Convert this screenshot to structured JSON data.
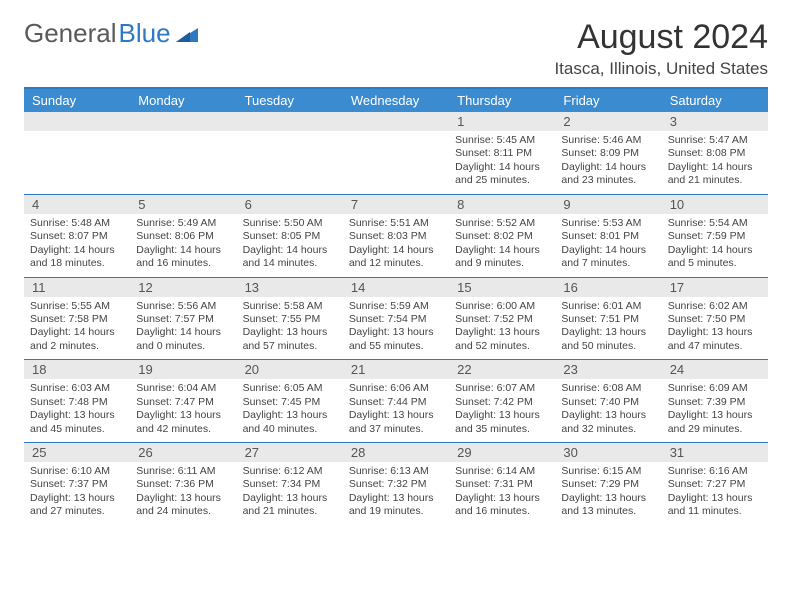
{
  "logo": {
    "text1": "General",
    "text2": "Blue"
  },
  "title": "August 2024",
  "subtitle": "Itasca, Illinois, United States",
  "colors": {
    "header_bg": "#3a8bcf",
    "rule": "#2e7ac2",
    "daynum_bg": "#e9e9e9",
    "text": "#333333",
    "brand_gray": "#5a5a5a",
    "brand_blue": "#2e7ac2",
    "background": "#ffffff"
  },
  "day_names": [
    "Sunday",
    "Monday",
    "Tuesday",
    "Wednesday",
    "Thursday",
    "Friday",
    "Saturday"
  ],
  "weeks": [
    [
      {
        "num": "",
        "sunrise": "",
        "sunset": "",
        "daylight": ""
      },
      {
        "num": "",
        "sunrise": "",
        "sunset": "",
        "daylight": ""
      },
      {
        "num": "",
        "sunrise": "",
        "sunset": "",
        "daylight": ""
      },
      {
        "num": "",
        "sunrise": "",
        "sunset": "",
        "daylight": ""
      },
      {
        "num": "1",
        "sunrise": "Sunrise: 5:45 AM",
        "sunset": "Sunset: 8:11 PM",
        "daylight": "Daylight: 14 hours and 25 minutes."
      },
      {
        "num": "2",
        "sunrise": "Sunrise: 5:46 AM",
        "sunset": "Sunset: 8:09 PM",
        "daylight": "Daylight: 14 hours and 23 minutes."
      },
      {
        "num": "3",
        "sunrise": "Sunrise: 5:47 AM",
        "sunset": "Sunset: 8:08 PM",
        "daylight": "Daylight: 14 hours and 21 minutes."
      }
    ],
    [
      {
        "num": "4",
        "sunrise": "Sunrise: 5:48 AM",
        "sunset": "Sunset: 8:07 PM",
        "daylight": "Daylight: 14 hours and 18 minutes."
      },
      {
        "num": "5",
        "sunrise": "Sunrise: 5:49 AM",
        "sunset": "Sunset: 8:06 PM",
        "daylight": "Daylight: 14 hours and 16 minutes."
      },
      {
        "num": "6",
        "sunrise": "Sunrise: 5:50 AM",
        "sunset": "Sunset: 8:05 PM",
        "daylight": "Daylight: 14 hours and 14 minutes."
      },
      {
        "num": "7",
        "sunrise": "Sunrise: 5:51 AM",
        "sunset": "Sunset: 8:03 PM",
        "daylight": "Daylight: 14 hours and 12 minutes."
      },
      {
        "num": "8",
        "sunrise": "Sunrise: 5:52 AM",
        "sunset": "Sunset: 8:02 PM",
        "daylight": "Daylight: 14 hours and 9 minutes."
      },
      {
        "num": "9",
        "sunrise": "Sunrise: 5:53 AM",
        "sunset": "Sunset: 8:01 PM",
        "daylight": "Daylight: 14 hours and 7 minutes."
      },
      {
        "num": "10",
        "sunrise": "Sunrise: 5:54 AM",
        "sunset": "Sunset: 7:59 PM",
        "daylight": "Daylight: 14 hours and 5 minutes."
      }
    ],
    [
      {
        "num": "11",
        "sunrise": "Sunrise: 5:55 AM",
        "sunset": "Sunset: 7:58 PM",
        "daylight": "Daylight: 14 hours and 2 minutes."
      },
      {
        "num": "12",
        "sunrise": "Sunrise: 5:56 AM",
        "sunset": "Sunset: 7:57 PM",
        "daylight": "Daylight: 14 hours and 0 minutes."
      },
      {
        "num": "13",
        "sunrise": "Sunrise: 5:58 AM",
        "sunset": "Sunset: 7:55 PM",
        "daylight": "Daylight: 13 hours and 57 minutes."
      },
      {
        "num": "14",
        "sunrise": "Sunrise: 5:59 AM",
        "sunset": "Sunset: 7:54 PM",
        "daylight": "Daylight: 13 hours and 55 minutes."
      },
      {
        "num": "15",
        "sunrise": "Sunrise: 6:00 AM",
        "sunset": "Sunset: 7:52 PM",
        "daylight": "Daylight: 13 hours and 52 minutes."
      },
      {
        "num": "16",
        "sunrise": "Sunrise: 6:01 AM",
        "sunset": "Sunset: 7:51 PM",
        "daylight": "Daylight: 13 hours and 50 minutes."
      },
      {
        "num": "17",
        "sunrise": "Sunrise: 6:02 AM",
        "sunset": "Sunset: 7:50 PM",
        "daylight": "Daylight: 13 hours and 47 minutes."
      }
    ],
    [
      {
        "num": "18",
        "sunrise": "Sunrise: 6:03 AM",
        "sunset": "Sunset: 7:48 PM",
        "daylight": "Daylight: 13 hours and 45 minutes."
      },
      {
        "num": "19",
        "sunrise": "Sunrise: 6:04 AM",
        "sunset": "Sunset: 7:47 PM",
        "daylight": "Daylight: 13 hours and 42 minutes."
      },
      {
        "num": "20",
        "sunrise": "Sunrise: 6:05 AM",
        "sunset": "Sunset: 7:45 PM",
        "daylight": "Daylight: 13 hours and 40 minutes."
      },
      {
        "num": "21",
        "sunrise": "Sunrise: 6:06 AM",
        "sunset": "Sunset: 7:44 PM",
        "daylight": "Daylight: 13 hours and 37 minutes."
      },
      {
        "num": "22",
        "sunrise": "Sunrise: 6:07 AM",
        "sunset": "Sunset: 7:42 PM",
        "daylight": "Daylight: 13 hours and 35 minutes."
      },
      {
        "num": "23",
        "sunrise": "Sunrise: 6:08 AM",
        "sunset": "Sunset: 7:40 PM",
        "daylight": "Daylight: 13 hours and 32 minutes."
      },
      {
        "num": "24",
        "sunrise": "Sunrise: 6:09 AM",
        "sunset": "Sunset: 7:39 PM",
        "daylight": "Daylight: 13 hours and 29 minutes."
      }
    ],
    [
      {
        "num": "25",
        "sunrise": "Sunrise: 6:10 AM",
        "sunset": "Sunset: 7:37 PM",
        "daylight": "Daylight: 13 hours and 27 minutes."
      },
      {
        "num": "26",
        "sunrise": "Sunrise: 6:11 AM",
        "sunset": "Sunset: 7:36 PM",
        "daylight": "Daylight: 13 hours and 24 minutes."
      },
      {
        "num": "27",
        "sunrise": "Sunrise: 6:12 AM",
        "sunset": "Sunset: 7:34 PM",
        "daylight": "Daylight: 13 hours and 21 minutes."
      },
      {
        "num": "28",
        "sunrise": "Sunrise: 6:13 AM",
        "sunset": "Sunset: 7:32 PM",
        "daylight": "Daylight: 13 hours and 19 minutes."
      },
      {
        "num": "29",
        "sunrise": "Sunrise: 6:14 AM",
        "sunset": "Sunset: 7:31 PM",
        "daylight": "Daylight: 13 hours and 16 minutes."
      },
      {
        "num": "30",
        "sunrise": "Sunrise: 6:15 AM",
        "sunset": "Sunset: 7:29 PM",
        "daylight": "Daylight: 13 hours and 13 minutes."
      },
      {
        "num": "31",
        "sunrise": "Sunrise: 6:16 AM",
        "sunset": "Sunset: 7:27 PM",
        "daylight": "Daylight: 13 hours and 11 minutes."
      }
    ]
  ]
}
